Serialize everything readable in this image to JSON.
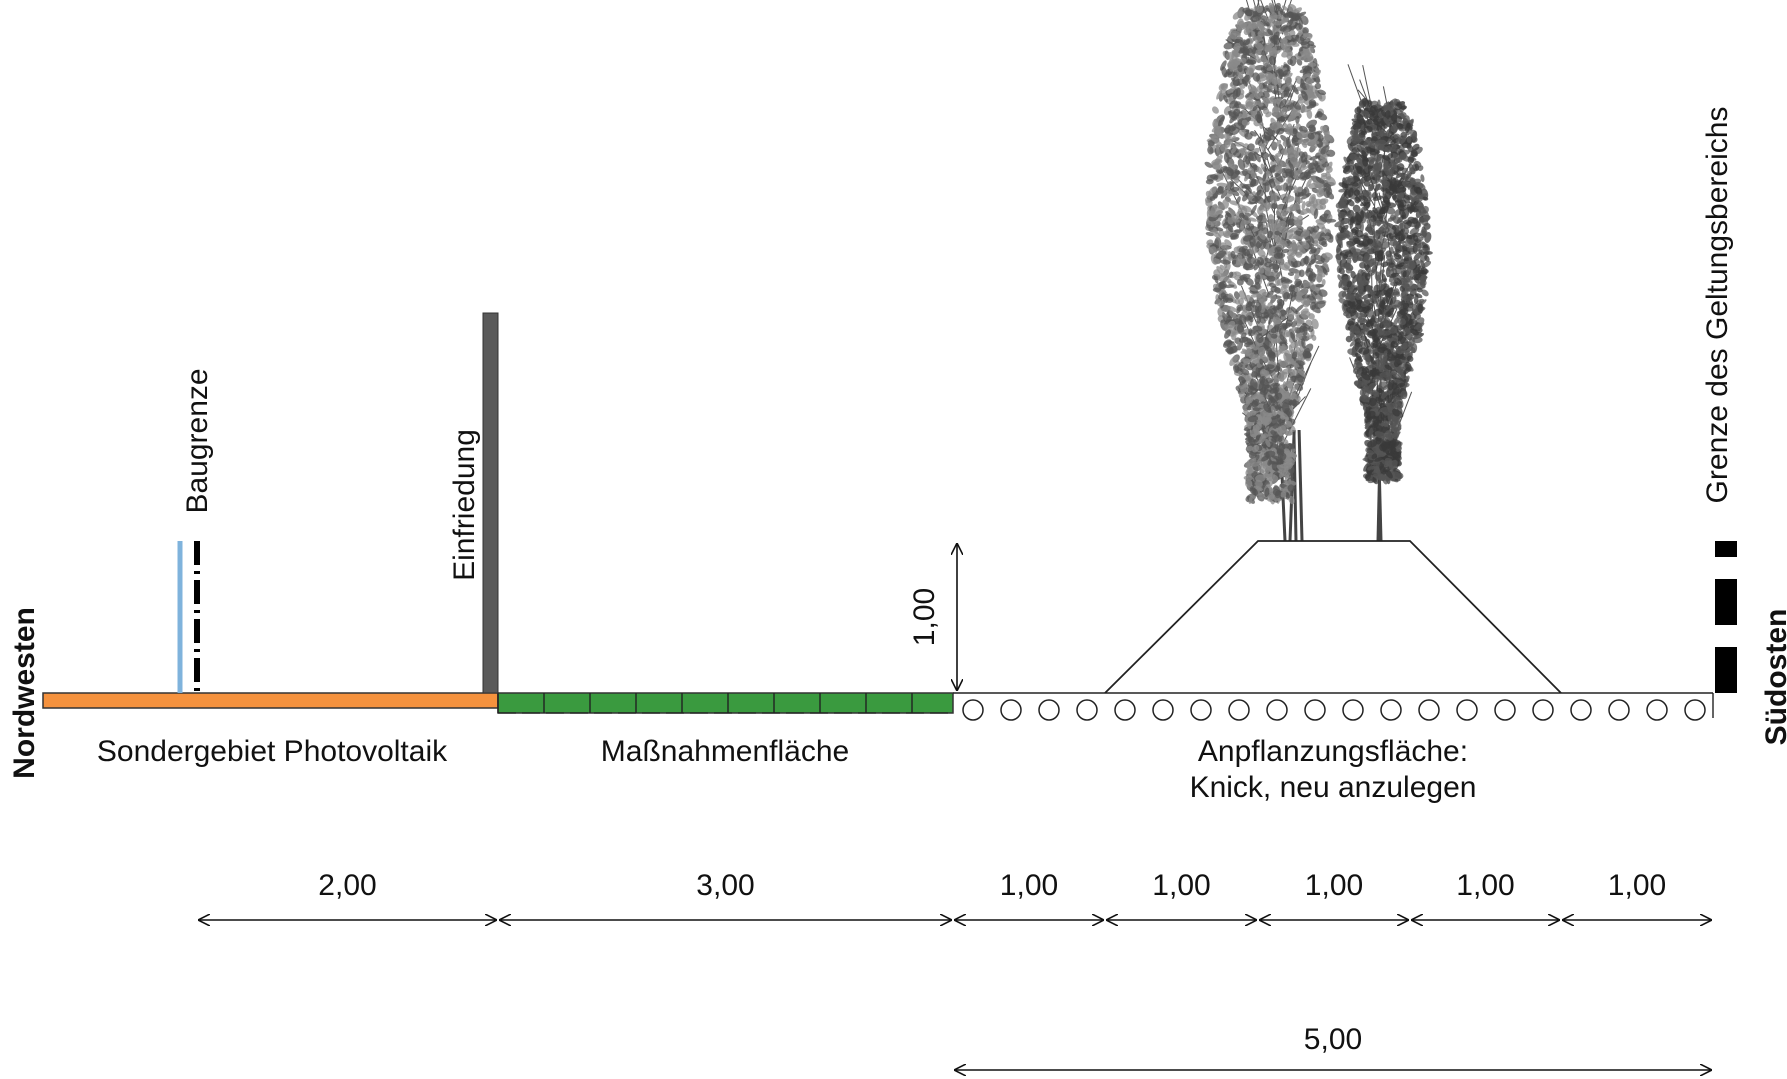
{
  "labels": {
    "nordwesten": "Nordwesten",
    "suedosten": "Südosten",
    "baugrenze": "Baugrenze",
    "einfriedung": "Einfriedung",
    "grenze": "Grenze des Geltungsbereichs",
    "sondergebiet": "Sondergebiet Photovoltaik",
    "massnahmen": "Maßnahmenfläche",
    "anpflanzung_line1": "Anpflanzungsfläche:",
    "anpflanzung_line2": "Knick, neu anzulegen"
  },
  "dimensions": {
    "height": "1,00",
    "segments": [
      "2,00",
      "3,00",
      "1,00",
      "1,00",
      "1,00",
      "1,00",
      "1,00"
    ],
    "total": "5,00"
  },
  "colors": {
    "sondergebiet": "#f5923e",
    "massnahmen": "#3a9a3f",
    "baugrenze_blue": "#7fb3dc",
    "einfriedung": "#5a5a5a",
    "tree_light": "#8a8a8a",
    "tree_dark": "#555555"
  }
}
